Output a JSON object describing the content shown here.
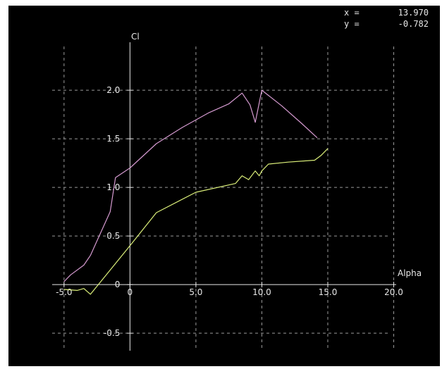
{
  "readout": {
    "x_label": "x =",
    "x_value": "13.970",
    "y_label": "y =",
    "y_value": "-0.782"
  },
  "colors": {
    "background": "#000000",
    "axis": "#e8e8e8",
    "grid": "#9a9a9a",
    "text": "#e8e8e8"
  },
  "chart_data": {
    "type": "line",
    "xlabel": "Alpha",
    "ylabel": "Cl",
    "xlim": [
      -5.9,
      23.5
    ],
    "ylim": [
      -0.68,
      2.45
    ],
    "grid": true,
    "x_ticks": [
      {
        "value": -5,
        "label": "-5.0"
      },
      {
        "value": 0,
        "label": "0"
      },
      {
        "value": 5,
        "label": "5.0"
      },
      {
        "value": 10,
        "label": "10.0"
      },
      {
        "value": 15,
        "label": "15.0"
      },
      {
        "value": 20,
        "label": "20.0"
      }
    ],
    "y_ticks": [
      {
        "value": -0.5,
        "label": "-0.5"
      },
      {
        "value": 0,
        "label": "0"
      },
      {
        "value": 0.5,
        "label": "0.5"
      },
      {
        "value": 1.0,
        "label": "1.0"
      },
      {
        "value": 1.5,
        "label": "1.5"
      },
      {
        "value": 2.0,
        "label": "2.0"
      }
    ],
    "series": [
      {
        "color": "#d59ad0",
        "points": [
          [
            -5.0,
            0.03
          ],
          [
            -4.5,
            0.1
          ],
          [
            -3.5,
            0.2
          ],
          [
            -3.0,
            0.3
          ],
          [
            -2.5,
            0.45
          ],
          [
            -2.0,
            0.6
          ],
          [
            -1.5,
            0.75
          ],
          [
            -1.1,
            1.1
          ],
          [
            0,
            1.2
          ],
          [
            2.0,
            1.45
          ],
          [
            4.0,
            1.62
          ],
          [
            6.0,
            1.77
          ],
          [
            7.5,
            1.86
          ],
          [
            8.5,
            1.97
          ],
          [
            9.1,
            1.85
          ],
          [
            9.5,
            1.67
          ],
          [
            10.0,
            2.0
          ],
          [
            11.5,
            1.84
          ],
          [
            13.0,
            1.66
          ],
          [
            14.2,
            1.51
          ]
        ]
      },
      {
        "color": "#dcf07a",
        "points": [
          [
            -5.0,
            -0.05
          ],
          [
            -4.0,
            -0.06
          ],
          [
            -3.5,
            -0.04
          ],
          [
            -3.0,
            -0.1
          ],
          [
            0.0,
            0.4
          ],
          [
            2.0,
            0.74
          ],
          [
            5.0,
            0.95
          ],
          [
            8.0,
            1.04
          ],
          [
            8.5,
            1.12
          ],
          [
            9.0,
            1.08
          ],
          [
            9.5,
            1.17
          ],
          [
            9.8,
            1.12
          ],
          [
            10.0,
            1.17
          ],
          [
            10.5,
            1.24
          ],
          [
            12.0,
            1.26
          ],
          [
            14.0,
            1.28
          ],
          [
            14.5,
            1.33
          ],
          [
            15.0,
            1.4
          ]
        ]
      }
    ]
  }
}
